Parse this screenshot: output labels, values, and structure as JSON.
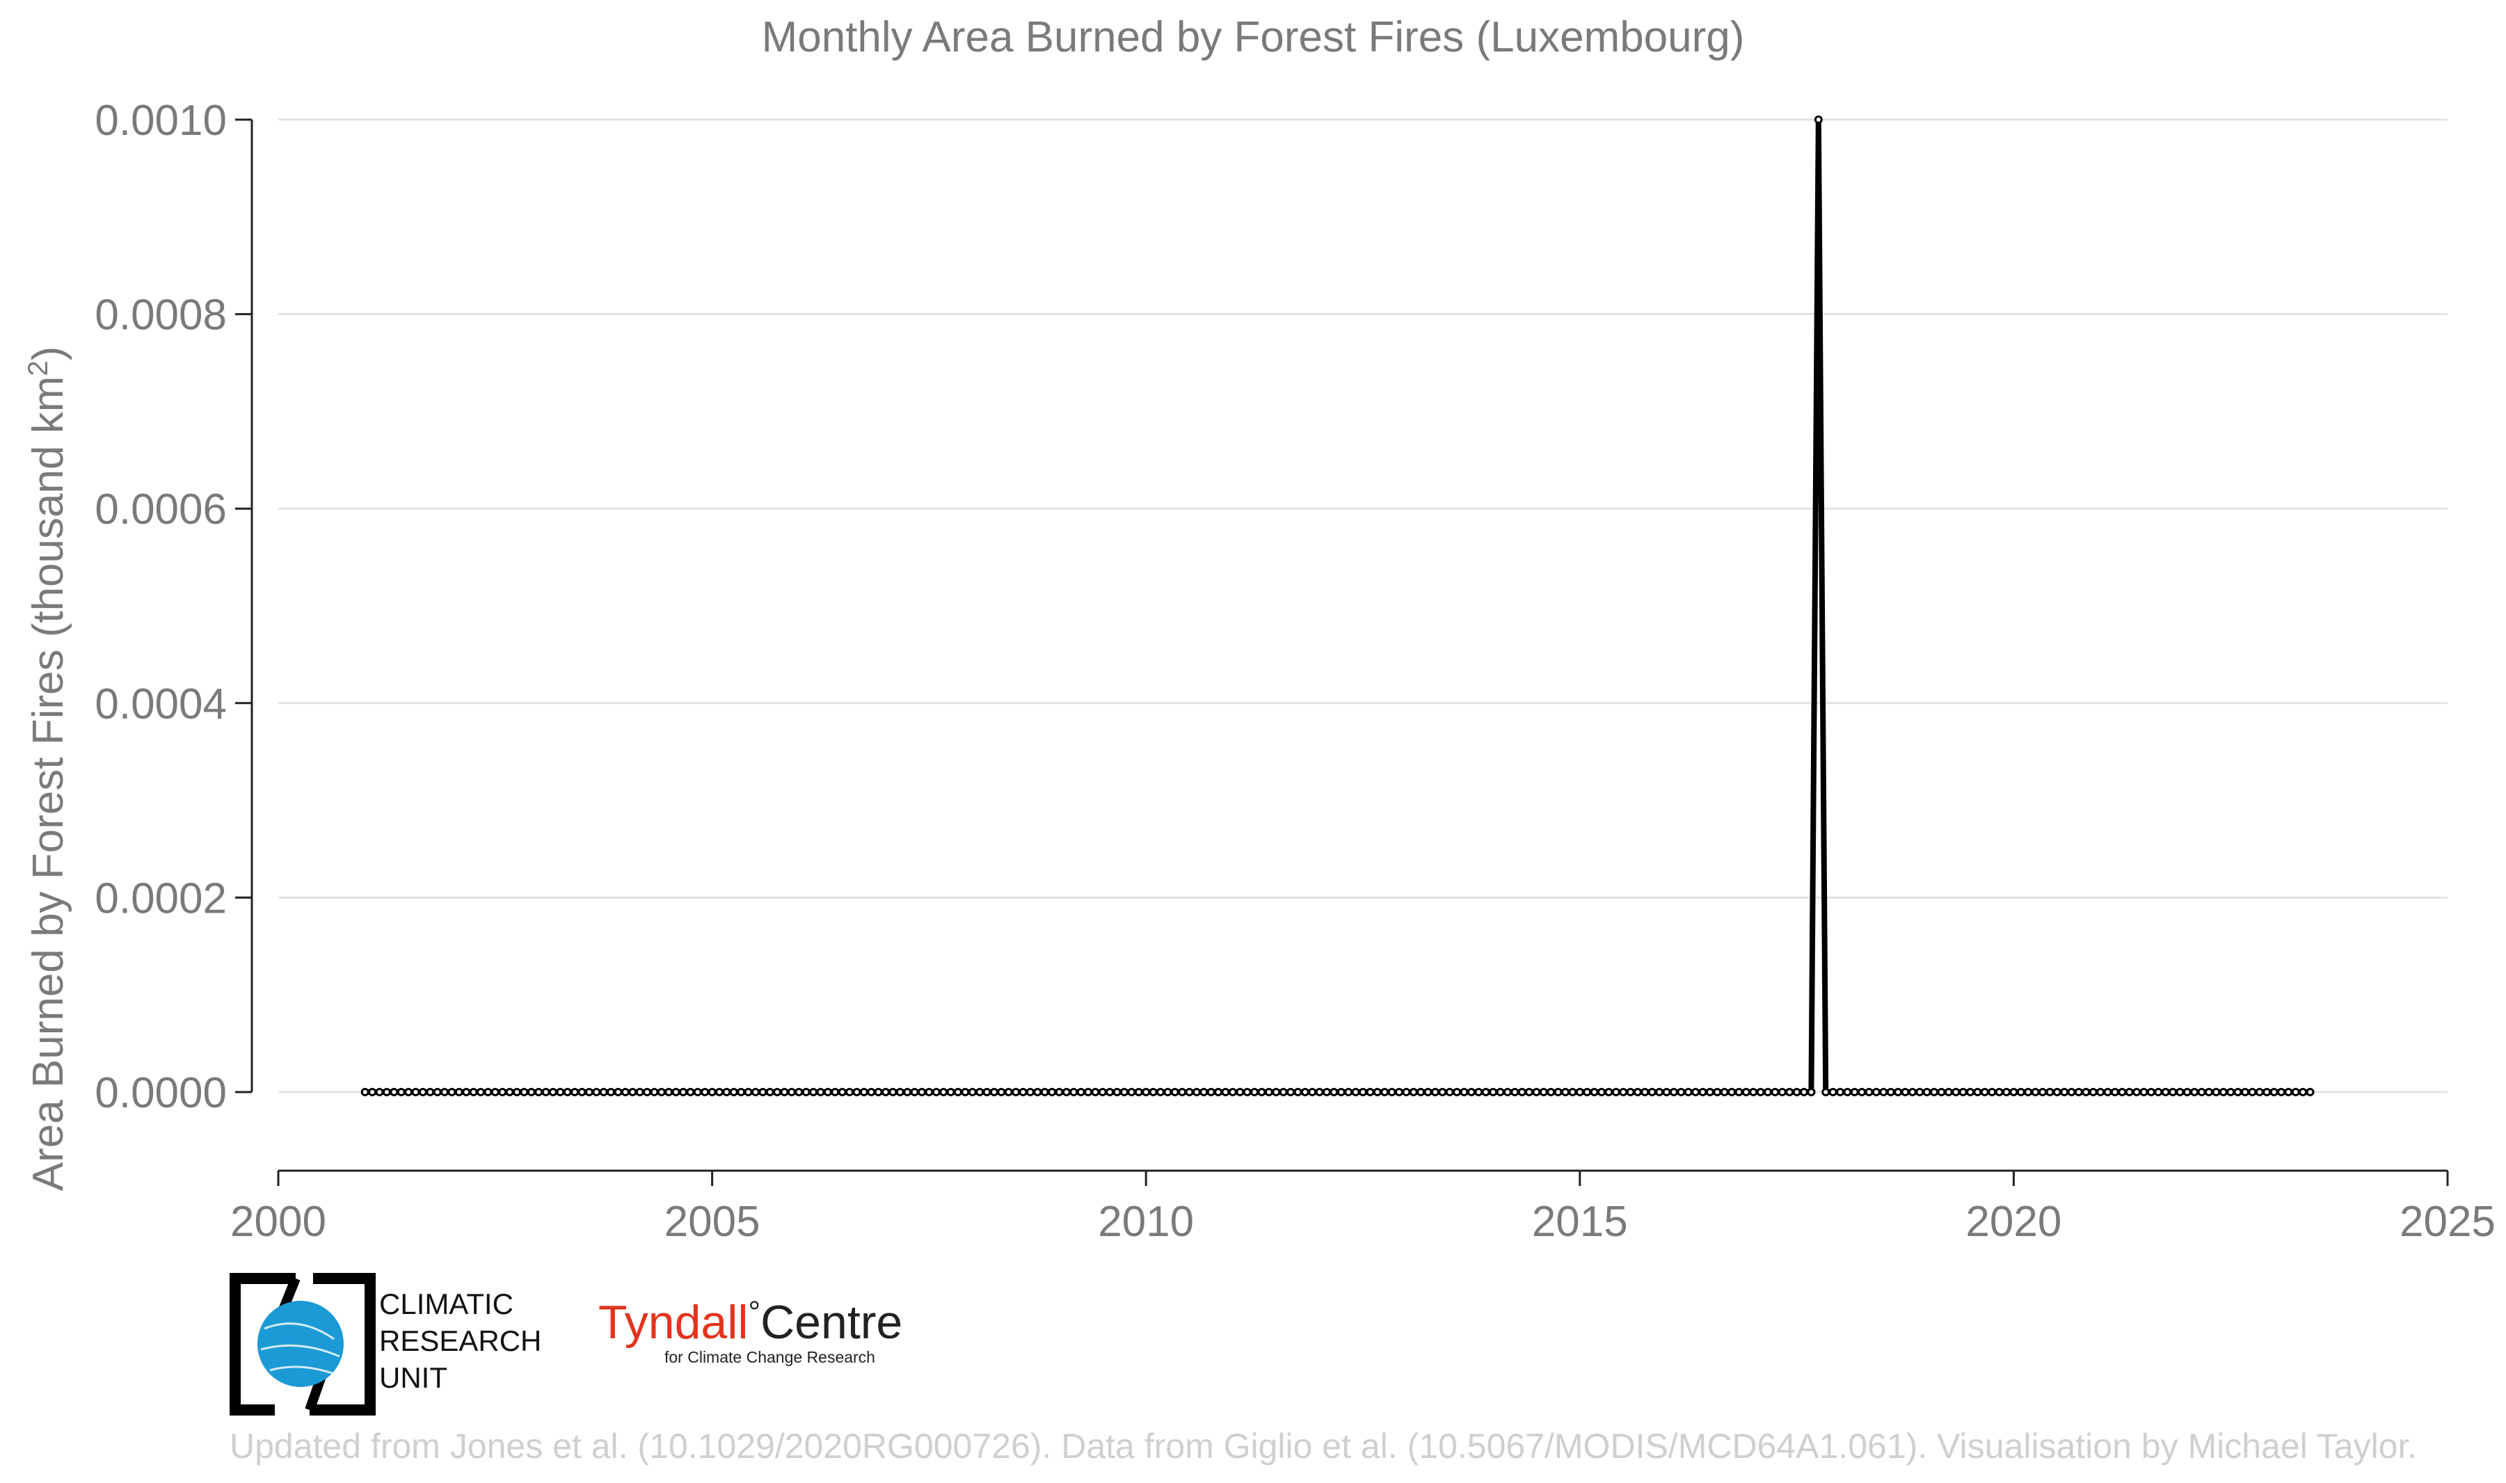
{
  "chart_data": {
    "type": "line",
    "title": "Monthly Area Burned by Forest Fires (Luxembourg)",
    "xlabel": "",
    "ylabel": "Area Burned by Forest Fires (thousand km",
    "ylabel_superscript": "2",
    "ylabel_suffix": ")",
    "xlim": [
      2000,
      2025
    ],
    "ylim": [
      0,
      0.001
    ],
    "x_ticks": [
      "2000",
      "2005",
      "2010",
      "2015",
      "2020",
      "2025"
    ],
    "y_ticks": [
      "0.0000",
      "0.0002",
      "0.0004",
      "0.0006",
      "0.0008",
      "0.0010"
    ],
    "grid": "horizontal",
    "series_color": "#000000",
    "x_start": "2001-01",
    "x_end": "2023-06",
    "series": [
      {
        "values": [
          0,
          0,
          0,
          0,
          0,
          0,
          0,
          0,
          0,
          0,
          0,
          0,
          0,
          0,
          0,
          0,
          0,
          0,
          0,
          0,
          0,
          0,
          0,
          0,
          0,
          0,
          0,
          0,
          0,
          0,
          0,
          0,
          0,
          0,
          0,
          0,
          0,
          0,
          0,
          0,
          0,
          0,
          0,
          0,
          0,
          0,
          0,
          0,
          0,
          0,
          0,
          0,
          0,
          0,
          0,
          0,
          0,
          0,
          0,
          0,
          0,
          0,
          0,
          0,
          0,
          0,
          0,
          0,
          0,
          0,
          0,
          0,
          0,
          0,
          0,
          0,
          0,
          0,
          0,
          0,
          0,
          0,
          0,
          0,
          0,
          0,
          0,
          0,
          0,
          0,
          0,
          0,
          0,
          0,
          0,
          0,
          0,
          0,
          0,
          0,
          0,
          0,
          0,
          0,
          0,
          0,
          0,
          0,
          0,
          0,
          0,
          0,
          0,
          0,
          0,
          0,
          0,
          0,
          0,
          0,
          0,
          0,
          0,
          0,
          0,
          0,
          0,
          0,
          0,
          0,
          0,
          0,
          0,
          0,
          0,
          0,
          0,
          0,
          0,
          0,
          0,
          0,
          0,
          0,
          0,
          0,
          0,
          0,
          0,
          0,
          0,
          0,
          0,
          0,
          0,
          0,
          0,
          0,
          0,
          0,
          0,
          0,
          0,
          0,
          0,
          0,
          0,
          0,
          0,
          0,
          0,
          0,
          0,
          0,
          0,
          0,
          0,
          0,
          0,
          0,
          0,
          0,
          0,
          0,
          0,
          0,
          0,
          0,
          0,
          0,
          0,
          0,
          0,
          0,
          0,
          0,
          0,
          0,
          0,
          0,
          0,
          0.001,
          0,
          0,
          0,
          0,
          0,
          0,
          0,
          0,
          0,
          0,
          0,
          0,
          0,
          0,
          0,
          0,
          0,
          0,
          0,
          0,
          0,
          0,
          0,
          0,
          0,
          0,
          0,
          0,
          0,
          0,
          0,
          0,
          0,
          0,
          0,
          0,
          0,
          0,
          0,
          0,
          0,
          0,
          0,
          0,
          0,
          0,
          0,
          0,
          0,
          0,
          0,
          0,
          0,
          0,
          0,
          0,
          0,
          0,
          0,
          0,
          0,
          0,
          0,
          0,
          0,
          0,
          0,
          0
        ]
      }
    ]
  },
  "logos": {
    "cru_lines": [
      "CLIMATIC",
      "RESEARCH",
      "UNIT"
    ],
    "tyndall_name": "Tyndall",
    "tyndall_degree": "°",
    "tyndall_centre": "Centre",
    "tyndall_sub": "for Climate Change Research",
    "tyndall_color": "#e2341d",
    "cru_globe_color": "#1b9ad6"
  },
  "footer": "Updated from Jones et al. (10.1029/2020RG000726). Data from Giglio et al. (10.5067/MODIS/MCD64A1.061). Visualisation by Michael Taylor."
}
